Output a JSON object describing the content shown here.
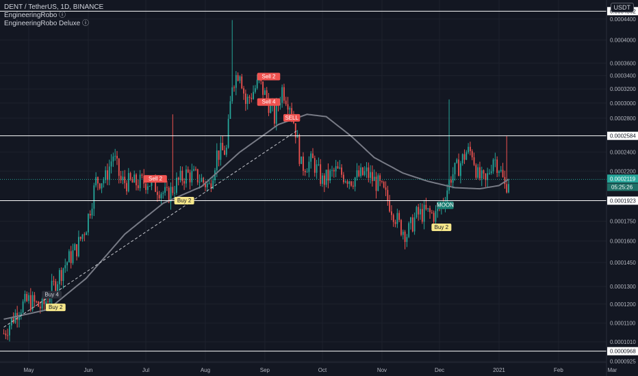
{
  "header": {
    "symbol_line": "DENT / TetherUS, 1D, BINANCE",
    "indicators": [
      "EngineeringRobo ⓘ",
      "EngineeringRobo Deluxe ⓘ"
    ],
    "currency_button": "USDT"
  },
  "chart_data": {
    "type": "candlestick",
    "title": "DENT / TetherUS, 1D, BINANCE",
    "y_scale": "log",
    "ylim": [
      9.2e-05,
      0.00048
    ],
    "price_ticks": [
      "0.0004400",
      "0.0004000",
      "0.0003600",
      "0.0003400",
      "0.0003200",
      "0.0003000",
      "0.0002800",
      "0.0002400",
      "0.0002200",
      "0.0001750",
      "0.0001600",
      "0.0001450",
      "0.0001300",
      "0.0001200",
      "0.0001100",
      "0.0001010",
      "0.0000925"
    ],
    "month_labels": [
      {
        "label": "May",
        "day": 0
      },
      {
        "label": "Jun",
        "day": 31
      },
      {
        "label": "Jul",
        "day": 61
      },
      {
        "label": "Aug",
        "day": 92
      },
      {
        "label": "Sep",
        "day": 123
      },
      {
        "label": "Oct",
        "day": 153
      },
      {
        "label": "Nov",
        "day": 184
      },
      {
        "label": "Dec",
        "day": 214
      },
      {
        "label": "2021",
        "day": 245
      },
      {
        "label": "Feb",
        "day": 276
      },
      {
        "label": "Mar",
        "day": 304
      }
    ],
    "levels": [
      {
        "value": 0.0004562,
        "label": "0.0004562"
      },
      {
        "value": 0.0002584,
        "label": "0.0002584"
      },
      {
        "value": 0.0001923,
        "label": "0.0001923"
      },
      {
        "value": 9.68e-05,
        "label": "0.0000968"
      }
    ],
    "last_price": {
      "value": 0.0002119,
      "label": "0.0002119",
      "countdown": "05:25:26"
    },
    "signals": [
      {
        "label": "Buy 4",
        "day": 12,
        "price": 0.000125,
        "kind": "buy-dark"
      },
      {
        "label": "Buy 2",
        "day": 14,
        "price": 0.000118,
        "kind": "buy"
      },
      {
        "label": "Sell 2",
        "day": 66,
        "price": 0.000212,
        "kind": "sell"
      },
      {
        "label": "Buy 2",
        "day": 81,
        "price": 0.000192,
        "kind": "buy"
      },
      {
        "label": "Sell 2",
        "day": 125,
        "price": 0.000338,
        "kind": "sell"
      },
      {
        "label": "Sell 4",
        "day": 125,
        "price": 0.000301,
        "kind": "sell"
      },
      {
        "label": "SELL",
        "day": 137,
        "price": 0.00028,
        "kind": "sell"
      },
      {
        "label": "MOON",
        "day": 217,
        "price": 0.000188,
        "kind": "moon"
      },
      {
        "label": "Buy 2",
        "day": 215,
        "price": 0.00017,
        "kind": "buy"
      }
    ],
    "close_anchors": [
      {
        "day": -13,
        "price": 0.000105
      },
      {
        "day": -5,
        "price": 0.000118
      },
      {
        "day": 0,
        "price": 0.000122
      },
      {
        "day": 7,
        "price": 0.000118
      },
      {
        "day": 12,
        "price": 0.000128
      },
      {
        "day": 18,
        "price": 0.000142
      },
      {
        "day": 25,
        "price": 0.000155
      },
      {
        "day": 30,
        "price": 0.000172
      },
      {
        "day": 35,
        "price": 0.00021
      },
      {
        "day": 40,
        "price": 0.000213
      },
      {
        "day": 44,
        "price": 0.000237
      },
      {
        "day": 48,
        "price": 0.00021
      },
      {
        "day": 55,
        "price": 0.000208
      },
      {
        "day": 62,
        "price": 0.00021
      },
      {
        "day": 68,
        "price": 0.000203
      },
      {
        "day": 72,
        "price": 0.000196
      },
      {
        "day": 77,
        "price": 0.000208
      },
      {
        "day": 82,
        "price": 0.000217
      },
      {
        "day": 88,
        "price": 0.000214
      },
      {
        "day": 94,
        "price": 0.000205
      },
      {
        "day": 98,
        "price": 0.000238
      },
      {
        "day": 103,
        "price": 0.000242
      },
      {
        "day": 106,
        "price": 0.00033
      },
      {
        "day": 110,
        "price": 0.00035
      },
      {
        "day": 113,
        "price": 0.0003
      },
      {
        "day": 120,
        "price": 0.00033
      },
      {
        "day": 125,
        "price": 0.0003
      },
      {
        "day": 128,
        "price": 0.00028
      },
      {
        "day": 132,
        "price": 0.00032
      },
      {
        "day": 136,
        "price": 0.0003
      },
      {
        "day": 139,
        "price": 0.000265
      },
      {
        "day": 142,
        "price": 0.000225
      },
      {
        "day": 148,
        "price": 0.00023
      },
      {
        "day": 153,
        "price": 0.00021
      },
      {
        "day": 160,
        "price": 0.00022
      },
      {
        "day": 168,
        "price": 0.000212
      },
      {
        "day": 176,
        "price": 0.000218
      },
      {
        "day": 183,
        "price": 0.000205
      },
      {
        "day": 188,
        "price": 0.00019
      },
      {
        "day": 193,
        "price": 0.000172
      },
      {
        "day": 197,
        "price": 0.000165
      },
      {
        "day": 202,
        "price": 0.00018
      },
      {
        "day": 207,
        "price": 0.000182
      },
      {
        "day": 212,
        "price": 0.00018
      },
      {
        "day": 216,
        "price": 0.000192
      },
      {
        "day": 220,
        "price": 0.000215
      },
      {
        "day": 224,
        "price": 0.000225
      },
      {
        "day": 228,
        "price": 0.00024
      },
      {
        "day": 231,
        "price": 0.00024
      },
      {
        "day": 234,
        "price": 0.000215
      },
      {
        "day": 238,
        "price": 0.000208
      },
      {
        "day": 242,
        "price": 0.000235
      },
      {
        "day": 245,
        "price": 0.000225
      },
      {
        "day": 248,
        "price": 0.000205
      },
      {
        "day": 250,
        "price": 0.000212
      }
    ],
    "ma_anchors": [
      {
        "day": -13,
        "price": 0.000112
      },
      {
        "day": 10,
        "price": 0.000117
      },
      {
        "day": 30,
        "price": 0.000135
      },
      {
        "day": 50,
        "price": 0.000165
      },
      {
        "day": 70,
        "price": 0.00019
      },
      {
        "day": 90,
        "price": 0.000205
      },
      {
        "day": 110,
        "price": 0.00024
      },
      {
        "day": 130,
        "price": 0.000272
      },
      {
        "day": 145,
        "price": 0.000285
      },
      {
        "day": 155,
        "price": 0.000282
      },
      {
        "day": 168,
        "price": 0.000258
      },
      {
        "day": 180,
        "price": 0.000234
      },
      {
        "day": 195,
        "price": 0.000218
      },
      {
        "day": 208,
        "price": 0.00021
      },
      {
        "day": 222,
        "price": 0.000204
      },
      {
        "day": 235,
        "price": 0.000203
      },
      {
        "day": 245,
        "price": 0.000206
      },
      {
        "day": 250,
        "price": 0.000212
      }
    ],
    "trendline": [
      {
        "day": -13,
        "price": 0.000108
      },
      {
        "day": 140,
        "price": 0.000265
      }
    ],
    "spikes": [
      {
        "day": 106,
        "price": 0.000438
      },
      {
        "day": 75,
        "price": 0.000285
      },
      {
        "day": 219,
        "price": 0.000305
      },
      {
        "day": 249,
        "price": 0.000258
      }
    ],
    "colors": {
      "up": "#26a69a",
      "down": "#ef5350",
      "background": "#131722",
      "grid": "#1e222d",
      "ma": "#787b86",
      "level": "#ffffff",
      "buy": "#f5e68a",
      "sell": "#ef5350",
      "moon": "#1b7f74"
    }
  }
}
